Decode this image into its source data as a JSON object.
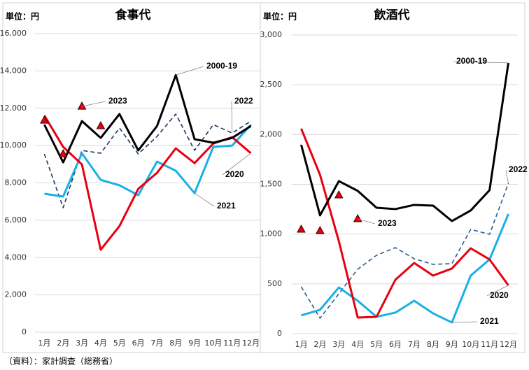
{
  "chart_data": [
    {
      "type": "line",
      "title": "食事代",
      "unit_label": "単位：円",
      "categories": [
        "1月",
        "2月",
        "3月",
        "4月",
        "5月",
        "6月",
        "7月",
        "8月",
        "9月",
        "10月",
        "11月",
        "12月"
      ],
      "ylim": [
        0,
        16000
      ],
      "yticks": [
        0,
        {
          "value": 2000,
          "label": "2,000"
        },
        {
          "value": 4000,
          "label": "4,000"
        },
        {
          "value": 6000,
          "label": "6,000"
        },
        {
          "value": 8000,
          "label": "8,000"
        },
        {
          "value": 10000,
          "label": "10,000"
        },
        {
          "value": 12000,
          "label": "12,000"
        },
        {
          "value": 14000,
          "label": "14,000"
        },
        {
          "value": 16000,
          "label": "16,000"
        }
      ],
      "grid": true,
      "series": [
        {
          "name": "2022",
          "color": "#1f3864",
          "dash": true,
          "values": [
            9550,
            6670,
            9740,
            9590,
            10940,
            9550,
            10490,
            11690,
            9740,
            11120,
            10670,
            11310
          ]
        },
        {
          "name": "2021",
          "color": "#19b0e8",
          "values": [
            7420,
            7270,
            9590,
            8160,
            7870,
            7340,
            9140,
            8650,
            7450,
            9930,
            10000,
            11120
          ]
        },
        {
          "name": "2020",
          "color": "#e60012",
          "values": [
            11610,
            9930,
            8990,
            4420,
            5690,
            7680,
            8540,
            9850,
            9060,
            10110,
            10450,
            9590
          ]
        },
        {
          "name": "2000-19",
          "color": "#000000",
          "values": [
            11120,
            9100,
            11310,
            10410,
            11690,
            9740,
            11050,
            13780,
            10340,
            10150,
            10410,
            11050
          ]
        },
        {
          "name": "2023",
          "color": "#e60012",
          "marker": "triangle",
          "values": [
            11350,
            9550,
            12100,
            11050,
            null,
            null,
            null,
            null,
            null,
            null,
            null,
            null
          ]
        }
      ]
    },
    {
      "type": "line",
      "title": "飲酒代",
      "unit_label": "単位：円",
      "categories": [
        "1月",
        "2月",
        "3月",
        "4月",
        "5月",
        "6月",
        "7月",
        "8月",
        "9月",
        "10月",
        "11月",
        "12月"
      ],
      "ylim": [
        0,
        3000
      ],
      "yticks": [
        0,
        500,
        {
          "value": 1000,
          "label": "1,000"
        },
        {
          "value": 1500,
          "label": "1,500"
        },
        {
          "value": 2000,
          "label": "2,000"
        },
        {
          "value": 2500,
          "label": "2,500"
        },
        {
          "value": 3000,
          "label": "3,000"
        }
      ],
      "grid": true,
      "series": [
        {
          "name": "2022",
          "color": "#2e5c8a",
          "dash": true,
          "values": [
            471,
            155,
            401,
            647,
            787,
            864,
            752,
            696,
            703,
            1047,
            998,
            1511
          ]
        },
        {
          "name": "2021",
          "color": "#19b0e8",
          "values": [
            183,
            239,
            464,
            330,
            169,
            211,
            330,
            204,
            112,
            583,
            745,
            1202
          ]
        },
        {
          "name": "2020",
          "color": "#e60012",
          "values": [
            2059,
            1595,
            928,
            162,
            169,
            541,
            710,
            583,
            654,
            857,
            745,
            485
          ]
        },
        {
          "name": "2000-19",
          "color": "#000000",
          "values": [
            1897,
            1188,
            1532,
            1434,
            1265,
            1251,
            1293,
            1286,
            1131,
            1237,
            1441,
            2720
          ]
        },
        {
          "name": "2023",
          "color": "#e60012",
          "marker": "triangle",
          "values": [
            1047,
            1033,
            1391,
            1152,
            null,
            null,
            null,
            null,
            null,
            null,
            null,
            null
          ]
        }
      ]
    }
  ],
  "source": "（資料）：家計調査（総務省）"
}
